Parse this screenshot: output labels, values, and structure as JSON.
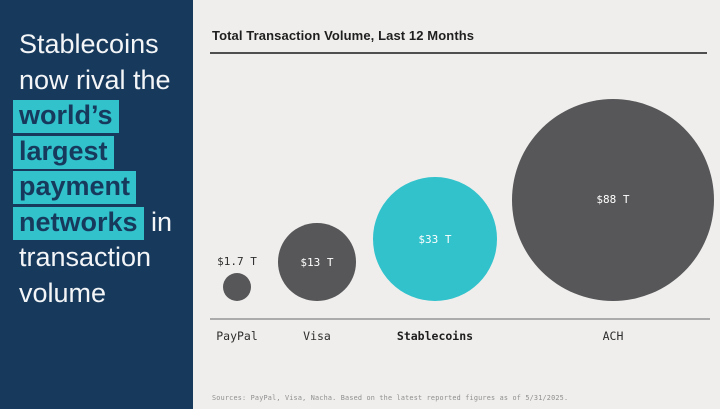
{
  "headline": {
    "lines": [
      [
        {
          "text": "Stablecoins",
          "hl": false
        }
      ],
      [
        {
          "text": "now rival the",
          "hl": false
        }
      ],
      [
        {
          "text": "world’s",
          "hl": true
        }
      ],
      [
        {
          "text": "largest",
          "hl": true
        }
      ],
      [
        {
          "text": "payment",
          "hl": true
        }
      ],
      [
        {
          "text": "networks",
          "hl": true
        },
        {
          "text": " in",
          "hl": false
        }
      ],
      [
        {
          "text": "transaction",
          "hl": false
        }
      ],
      [
        {
          "text": "volume",
          "hl": false
        }
      ]
    ]
  },
  "chart_data": {
    "type": "bubble",
    "title": "Total Transaction Volume, Last 12 Months",
    "categories": [
      "PayPal",
      "Visa",
      "Stablecoins",
      "ACH"
    ],
    "values": [
      1.7,
      13,
      33,
      88
    ],
    "value_labels": [
      "$1.7 T",
      "$13 T",
      "$33 T",
      "$88 T"
    ],
    "bubble_colors": [
      "#575759",
      "#575759",
      "#31C2CC",
      "#575759"
    ],
    "value_label_placement": [
      "outside",
      "inside",
      "inside",
      "inside"
    ],
    "emphasized_category": "Stablecoins",
    "layout_hints": {
      "area_proportional_to_value": true,
      "bottom_aligned_on_common_baseline": true,
      "grid": false,
      "legend": false
    }
  },
  "source_note": "Sources: PayPal, Visa, Nacha. Based on the latest reported figures as of 5/31/2025.",
  "colors": {
    "navy": "#17395C",
    "teal": "#31C2CC",
    "bubble_gray": "#575759",
    "background_gray": "#EFEEEC",
    "headline_text": "#F3F5F7",
    "title_text": "#1F1F1F",
    "baseline_gray": "#ABABAB",
    "source_text": "#8F8F8F"
  }
}
